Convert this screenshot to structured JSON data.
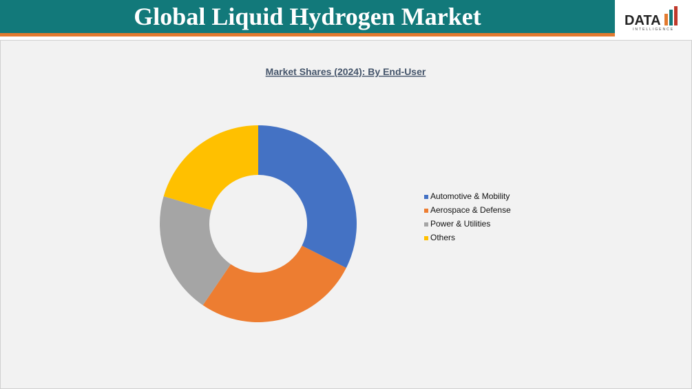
{
  "header": {
    "title": "Global Liquid Hydrogen Market"
  },
  "logo": {
    "name": "DATA",
    "tagline": "INTELLIGENCE"
  },
  "chart_data": {
    "type": "donut",
    "title": "Market Shares (2024): By End-User",
    "categories": [
      "Automotive & Mobility",
      "Aerospace & Defense",
      "Power & Utilities",
      "Others"
    ],
    "values": [
      32.4,
      27.1,
      20.0,
      20.5
    ],
    "colors": [
      "#4472c4",
      "#ed7d31",
      "#a5a5a5",
      "#ffc000"
    ],
    "legend": "right"
  }
}
